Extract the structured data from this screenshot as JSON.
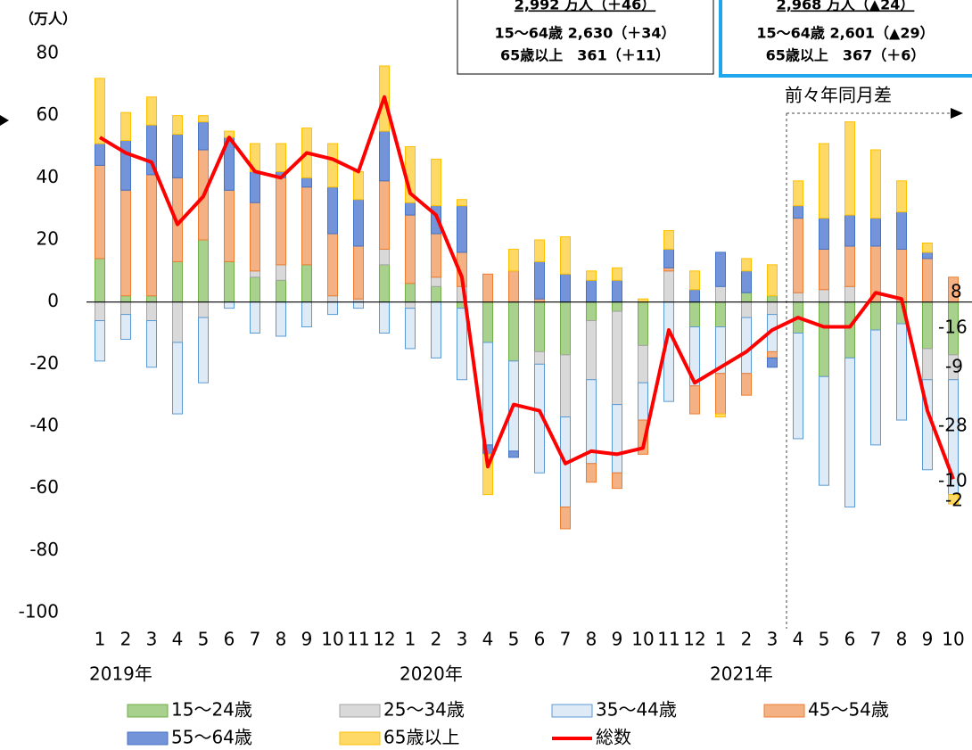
{
  "chart_data": {
    "type": "bar",
    "unit_label": "（万人）",
    "categories": [
      "1",
      "2",
      "3",
      "4",
      "5",
      "6",
      "7",
      "8",
      "9",
      "10",
      "11",
      "12",
      "1",
      "2",
      "3",
      "4",
      "5",
      "6",
      "7",
      "8",
      "9",
      "10",
      "11",
      "12",
      "1",
      "2",
      "3",
      "4",
      "5",
      "6",
      "7",
      "8",
      "9",
      "10"
    ],
    "year_labels": [
      "2019年",
      "2020年",
      "2021年"
    ],
    "ylim": [
      -100,
      80
    ],
    "yticks": [
      -100,
      -80,
      -60,
      -40,
      -20,
      0,
      20,
      40,
      60,
      80
    ],
    "series": [
      {
        "name": "15～24歳",
        "color": "#a9d18e",
        "border": "#70ad47",
        "values": [
          14,
          2,
          2,
          13,
          20,
          13,
          8,
          7,
          12,
          0,
          0,
          12,
          6,
          5,
          -2,
          -13,
          -19,
          -16,
          -17,
          -6,
          -3,
          -14,
          0,
          -8,
          -8,
          3,
          2,
          -10,
          -24,
          -18,
          -9,
          -7,
          -15,
          -17
        ]
      },
      {
        "name": "25～34歳",
        "color": "#d9d9d9",
        "border": "#a5a5a5",
        "values": [
          -6,
          -4,
          -6,
          -13,
          -5,
          0,
          2,
          5,
          0,
          2,
          1,
          5,
          -2,
          3,
          5,
          0,
          0,
          -4,
          -20,
          -19,
          -30,
          -12,
          10,
          0,
          5,
          -5,
          -4,
          3,
          4,
          5,
          0,
          0,
          -10,
          -8
        ]
      },
      {
        "name": "35～44歳",
        "color": "#deebf7",
        "border": "#5b9bd5",
        "values": [
          -13,
          -8,
          -15,
          -23,
          -21,
          -2,
          -10,
          -11,
          -8,
          -4,
          -2,
          -10,
          -13,
          -18,
          -23,
          -33,
          -29,
          -35,
          -29,
          -27,
          -22,
          -12,
          -32,
          -19,
          -15,
          -18,
          -12,
          -34,
          -35,
          -48,
          -37,
          -31,
          -29,
          -37
        ]
      },
      {
        "name": "45～54歳",
        "color": "#f4b183",
        "border": "#ed7d31",
        "values": [
          30,
          34,
          39,
          27,
          29,
          23,
          22,
          28,
          25,
          20,
          17,
          22,
          22,
          14,
          11,
          9,
          10,
          1,
          -7,
          -6,
          -5,
          -11,
          1,
          -9,
          -13,
          -7,
          -2,
          24,
          13,
          13,
          18,
          17,
          14,
          8
        ]
      },
      {
        "name": "55～64歳",
        "color": "#7394d8",
        "border": "#4472c4",
        "values": [
          7,
          16,
          16,
          14,
          9,
          17,
          10,
          2,
          3,
          15,
          15,
          16,
          4,
          9,
          15,
          -3,
          -2,
          12,
          9,
          7,
          7,
          0,
          6,
          4,
          11,
          7,
          -3,
          4,
          10,
          10,
          9,
          12,
          2,
          0
        ]
      },
      {
        "name": "65歳以上",
        "color": "#ffd966",
        "border": "#ffc000",
        "values": [
          21,
          9,
          9,
          6,
          2,
          2,
          9,
          9,
          16,
          14,
          9,
          21,
          18,
          15,
          2,
          -13,
          7,
          7,
          12,
          3,
          4,
          1,
          6,
          6,
          -1,
          4,
          10,
          8,
          24,
          30,
          22,
          10,
          3,
          -3
        ]
      },
      {
        "name": "総数",
        "type": "line",
        "color": "#ff0000",
        "values": [
          53,
          48,
          45,
          25,
          34,
          53,
          42,
          40,
          48,
          46,
          42,
          66,
          35,
          28,
          8,
          -53,
          -33,
          -35,
          -52,
          -48,
          -49,
          -47,
          -9,
          -26,
          -21,
          -16,
          -9,
          -5,
          -8,
          -8,
          3,
          1,
          -35,
          -57
        ]
      }
    ],
    "annotation": "前々年同月差",
    "box_left": [
      "2,992 万人（＋46）",
      "15～64歳 2,630（＋34）",
      "65歳以上　361（＋11）"
    ],
    "box_right": [
      "2,968 万人（▲24）",
      "15～64歳 2,601（▲29）",
      "65歳以上　367（＋6）"
    ],
    "edge_labels": [
      "8",
      "-16",
      "-9",
      "-28",
      "-10",
      "-2"
    ]
  }
}
